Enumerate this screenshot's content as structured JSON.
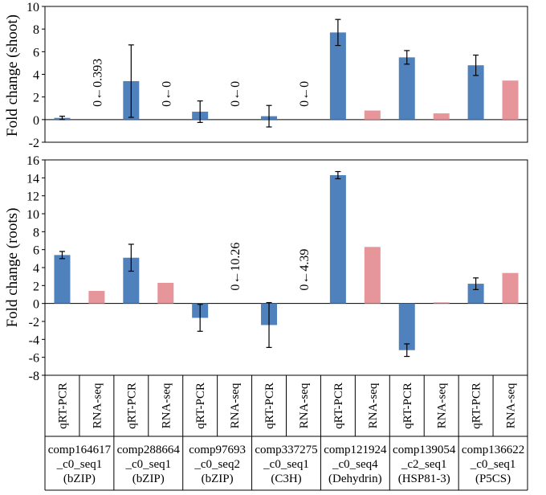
{
  "colors": {
    "qrt": "#4F81BD",
    "rna": "#E6959A"
  },
  "method_labels": [
    "qRT-PCR",
    "RNA-seq"
  ],
  "genes": [
    {
      "line1": "comp164617",
      "line2": "_c0_seq1",
      "line3": "(bZIP)"
    },
    {
      "line1": "comp288664",
      "line2": "_c0_seq1",
      "line3": "(bZIP)"
    },
    {
      "line1": "comp97693",
      "line2": "_c0_seq2",
      "line3": "(bZIP)"
    },
    {
      "line1": "comp337275",
      "line2": "_c0_seq1",
      "line3": "(C3H)"
    },
    {
      "line1": "comp121924",
      "line2": "_c0_seq4",
      "line3": "(Dehydrin)"
    },
    {
      "line1": "comp139054",
      "line2": "_c2_seq1",
      "line3": "(HSP81-3)"
    },
    {
      "line1": "comp136622",
      "line2": "_c0_seq1",
      "line3": "(P5CS)"
    }
  ],
  "chart_data": [
    {
      "type": "bar",
      "panel": "shoot",
      "ylabel": "Fold change (shoot)",
      "ylim": [
        -2,
        10
      ],
      "ticks": [
        -2,
        0,
        2,
        4,
        6,
        8,
        10
      ],
      "series": [
        {
          "name": "qRT-PCR",
          "values": [
            0.15,
            3.4,
            0.7,
            0.3,
            7.7,
            5.5,
            4.8
          ],
          "errors": [
            0.15,
            3.2,
            0.95,
            0.95,
            1.15,
            0.6,
            0.9
          ]
        },
        {
          "name": "RNA-seq",
          "values": [
            0,
            0,
            0,
            0,
            0.8,
            0.55,
            3.45
          ],
          "errors": [
            null,
            null,
            null,
            null,
            null,
            null,
            null
          ]
        }
      ],
      "annotations": [
        "0←0.393",
        "0←0",
        "0←0",
        "0←0",
        "",
        "",
        ""
      ]
    },
    {
      "type": "bar",
      "panel": "roots",
      "ylabel": "Fold change (roots)",
      "ylim": [
        -8,
        16
      ],
      "ticks": [
        -8,
        -6,
        -4,
        -2,
        0,
        2,
        4,
        6,
        8,
        10,
        12,
        14,
        16
      ],
      "series": [
        {
          "name": "qRT-PCR",
          "values": [
            5.4,
            5.1,
            -1.6,
            -2.4,
            14.3,
            -5.2,
            2.2
          ],
          "errors": [
            0.4,
            1.5,
            1.5,
            2.5,
            0.4,
            0.7,
            0.65
          ]
        },
        {
          "name": "RNA-seq",
          "values": [
            1.4,
            2.3,
            0,
            0,
            6.3,
            0.12,
            3.4
          ],
          "errors": [
            null,
            null,
            null,
            null,
            null,
            null,
            null
          ]
        }
      ],
      "annotations": [
        "",
        "",
        "0←10.26",
        "0←4.39",
        "",
        "",
        ""
      ]
    }
  ]
}
